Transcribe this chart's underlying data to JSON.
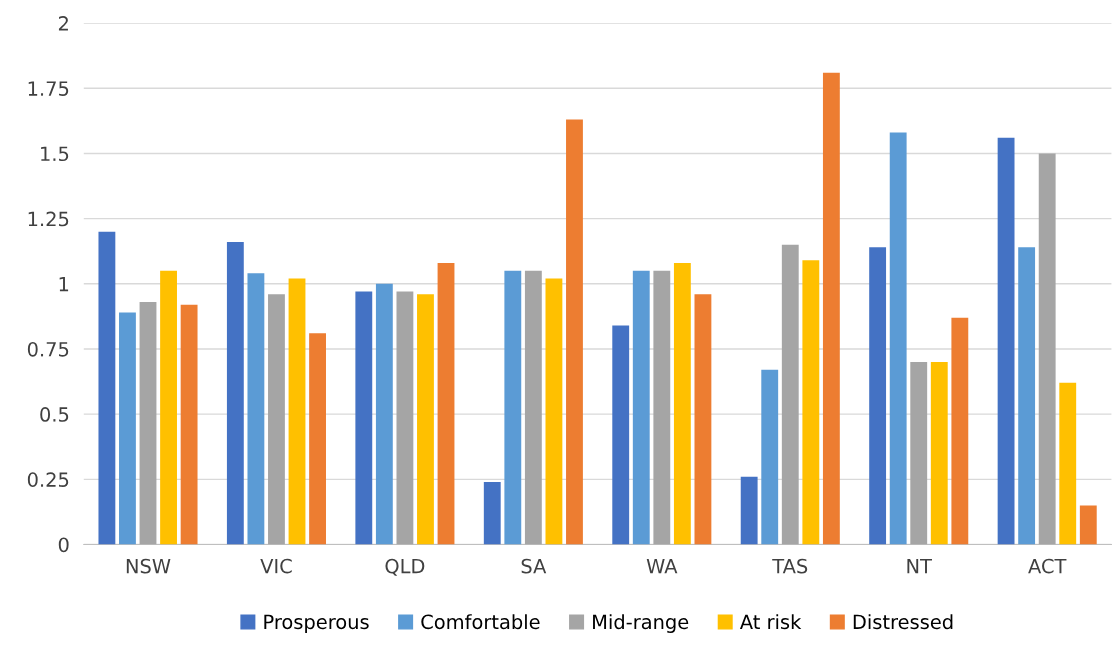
{
  "chart_data": {
    "type": "bar",
    "categories": [
      "NSW",
      "VIC",
      "QLD",
      "SA",
      "WA",
      "TAS",
      "NT",
      "ACT"
    ],
    "series": [
      {
        "name": "Prosperous",
        "color": "#4472c4",
        "values": [
          1.2,
          1.16,
          0.97,
          0.24,
          0.84,
          0.26,
          1.14,
          1.56
        ]
      },
      {
        "name": "Comfortable",
        "color": "#5b9bd5",
        "values": [
          0.89,
          1.04,
          1.0,
          1.05,
          1.05,
          0.67,
          1.58,
          1.14
        ]
      },
      {
        "name": "Mid-range",
        "color": "#a5a5a5",
        "values": [
          0.93,
          0.96,
          0.97,
          1.05,
          1.05,
          1.15,
          0.7,
          1.5
        ]
      },
      {
        "name": "At risk",
        "color": "#ffc000",
        "values": [
          1.05,
          1.02,
          0.96,
          1.02,
          1.08,
          1.09,
          0.7,
          0.62
        ]
      },
      {
        "name": "Distressed",
        "color": "#ed7d31",
        "values": [
          0.92,
          0.81,
          1.08,
          1.63,
          0.96,
          1.81,
          0.87,
          0.15
        ]
      }
    ],
    "ylim": [
      0,
      2
    ],
    "yticks": [
      0,
      0.25,
      0.5,
      0.75,
      1,
      1.25,
      1.5,
      1.75,
      2
    ],
    "grid": "y",
    "legend": "bottom"
  }
}
